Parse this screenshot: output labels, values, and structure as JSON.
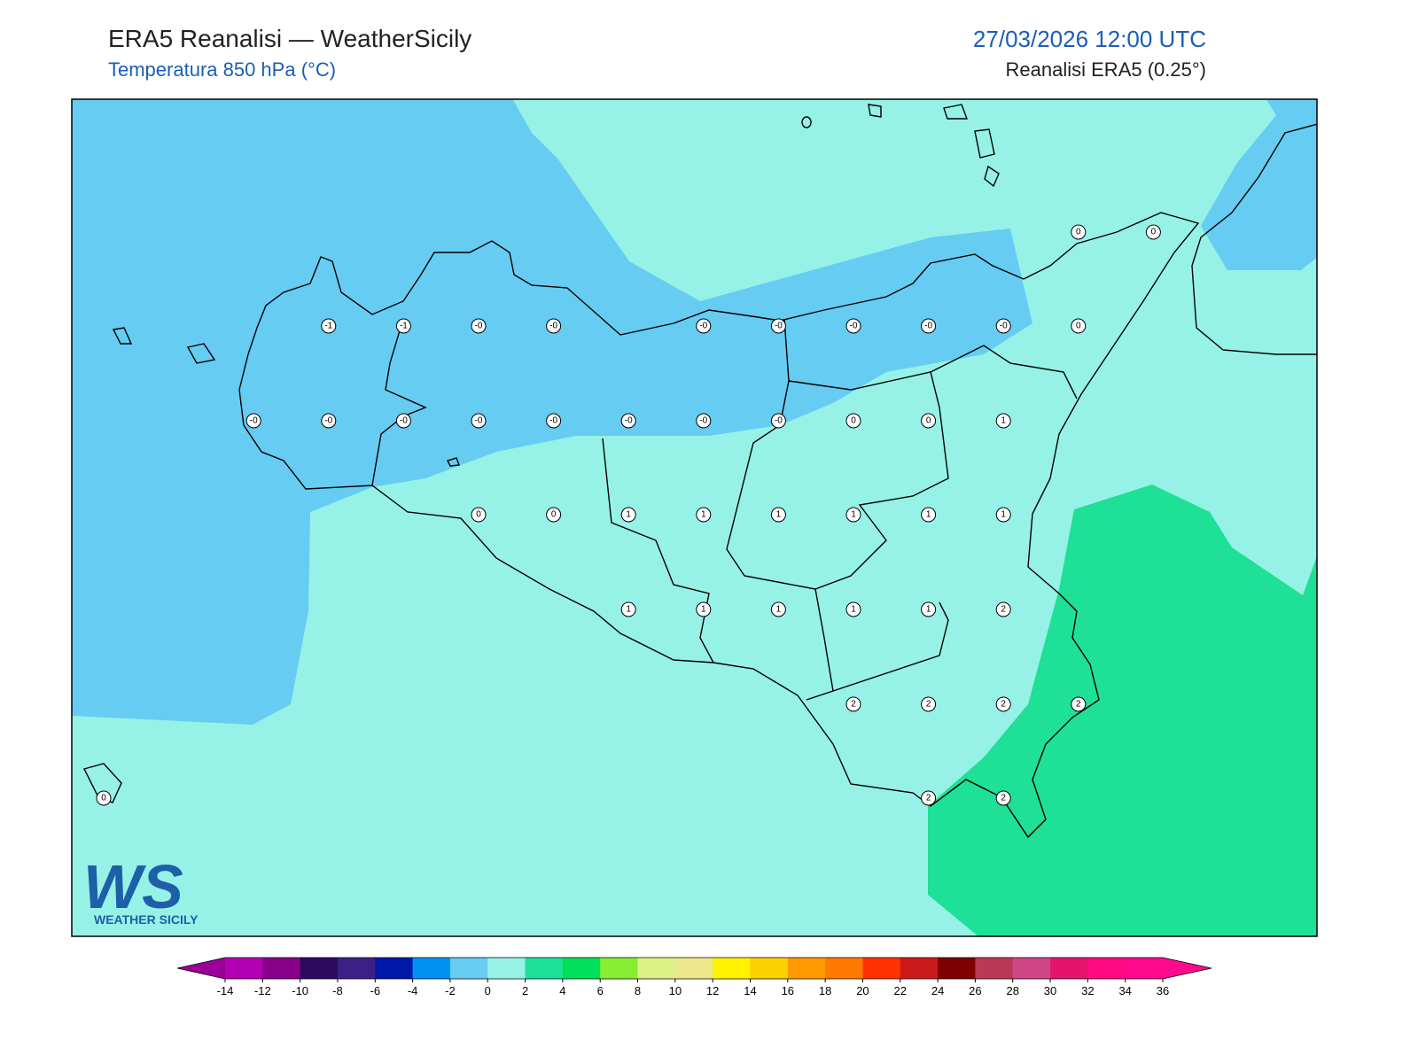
{
  "header": {
    "title": "ERA5 Reanalisi — WeatherSicily",
    "subtitle": "Temperatura 850 hPa (°C)",
    "datetime": "27/03/2026 12:00 UTC",
    "source": "Reanalisi ERA5 (0.25°)"
  },
  "map": {
    "stations": [
      [
        null,
        null,
        null,
        null,
        null,
        null,
        null,
        null,
        null,
        null,
        null,
        null,
        null,
        "0",
        "0"
      ],
      [
        null,
        null,
        null,
        "-1",
        "-1",
        "-0",
        "-0",
        null,
        "-0",
        "-0",
        "-0",
        "-0",
        "-0",
        "0",
        null
      ],
      [
        null,
        null,
        "-0",
        "-0",
        "-0",
        "-0",
        "-0",
        "-0",
        "-0",
        "-0",
        "0",
        "0",
        "1",
        null,
        null
      ],
      [
        null,
        null,
        null,
        null,
        null,
        "0",
        "0",
        "1",
        "1",
        "1",
        "1",
        "1",
        "1",
        null,
        null
      ],
      [
        null,
        null,
        null,
        null,
        null,
        null,
        null,
        "1",
        "1",
        "1",
        "1",
        "1",
        "2",
        null,
        null
      ],
      [
        null,
        null,
        null,
        null,
        null,
        null,
        null,
        null,
        null,
        null,
        "2",
        "2",
        "2",
        "2",
        null
      ],
      [
        "0",
        null,
        null,
        null,
        null,
        null,
        null,
        null,
        null,
        null,
        null,
        "2",
        "2",
        null,
        null
      ]
    ]
  },
  "logo": {
    "initials": "WS",
    "text": "WEATHER SICILY"
  },
  "colorbar": {
    "ticks": [
      -14,
      -12,
      -10,
      -8,
      -6,
      -4,
      -2,
      0,
      2,
      4,
      6,
      8,
      10,
      12,
      14,
      16,
      18,
      20,
      22,
      24,
      26,
      28,
      30,
      32,
      34,
      36
    ],
    "under_color": "#9b009b",
    "over_color": "#ff0a8c",
    "colors": [
      "#b400b4",
      "#8a008a",
      "#2e0a5c",
      "#3c2086",
      "#0018a8",
      "#0092f2",
      "#66ccf2",
      "#96f2e6",
      "#1ee096",
      "#00e05a",
      "#88ee33",
      "#dcf286",
      "#eee68a",
      "#fff200",
      "#ffd000",
      "#ff9a00",
      "#ff7a00",
      "#ff3200",
      "#cc1a1a",
      "#800000",
      "#b83a56",
      "#cf4688",
      "#e4146e",
      "#ff0a80",
      "#ff0a8c"
    ]
  }
}
